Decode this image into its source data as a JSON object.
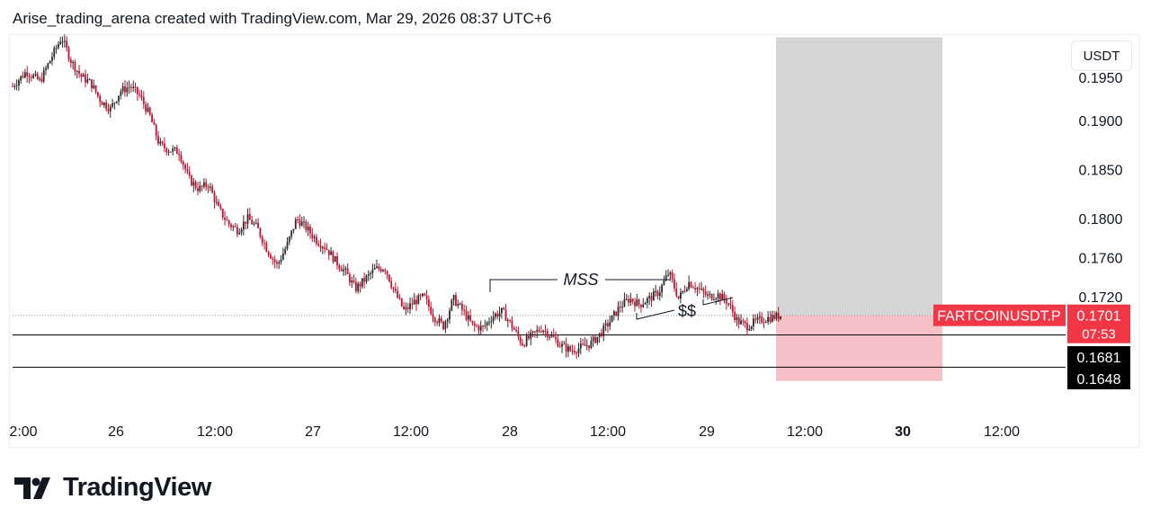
{
  "header": {
    "text": "Arise_trading_arena created with TradingView.com, Mar 29, 2026 08:37 UTC+6"
  },
  "currency_label": "USDT",
  "brand": {
    "name": "TradingView",
    "logo_icon": "tradingview-logo-icon"
  },
  "colors": {
    "up": "#2b2b2b",
    "down": "#c8102e",
    "symbol_badge": "#f23645",
    "stop_zone": "#f7bfc6",
    "target_zone": "#d6d6d6",
    "level_line": "#000000",
    "price_dotted": "#9598a1"
  },
  "chart_data": {
    "type": "candlestick",
    "symbol": "FARTCOINUSDT.P",
    "y_axis": {
      "ticks": [
        "0.1900",
        "0.1850",
        "0.1800",
        "0.1760",
        "0.1720"
      ],
      "partial_top_tick": "0.1950",
      "range": [
        0.1618,
        0.2
      ]
    },
    "x_axis": {
      "ticks": [
        {
          "label": "2:00",
          "bold": false
        },
        {
          "label": "26",
          "bold": false
        },
        {
          "label": "12:00",
          "bold": false
        },
        {
          "label": "27",
          "bold": false
        },
        {
          "label": "12:00",
          "bold": false
        },
        {
          "label": "28",
          "bold": false
        },
        {
          "label": "12:00",
          "bold": false
        },
        {
          "label": "29",
          "bold": false
        },
        {
          "label": "12:00",
          "bold": false
        },
        {
          "label": "30",
          "bold": true
        },
        {
          "label": "12:00",
          "bold": false
        }
      ]
    },
    "last_price": {
      "value": "0.1701",
      "countdown": "07:53"
    },
    "levels": [
      {
        "value": 0.1681,
        "label": "0.1681"
      },
      {
        "value": 0.1648,
        "label": "0.1648"
      }
    ],
    "position": {
      "entry": 0.1701,
      "target": 0.1985,
      "stop": 0.1634
    },
    "annotations": [
      {
        "text": "MSS",
        "italic": true
      },
      {
        "text": "$$",
        "italic": false
      }
    ],
    "price_path": [
      [
        0.0,
        0.1935
      ],
      [
        0.7,
        0.195
      ],
      [
        1.4,
        0.194
      ],
      [
        2.0,
        0.1965
      ],
      [
        2.5,
        0.1985
      ],
      [
        3.0,
        0.196
      ],
      [
        3.5,
        0.1945
      ],
      [
        4.0,
        0.1938
      ],
      [
        4.5,
        0.192
      ],
      [
        5.0,
        0.1912
      ],
      [
        5.5,
        0.193
      ],
      [
        6.0,
        0.1935
      ],
      [
        6.5,
        0.1925
      ],
      [
        7.0,
        0.1905
      ],
      [
        7.5,
        0.1875
      ],
      [
        8.0,
        0.187
      ],
      [
        8.5,
        0.1868
      ],
      [
        9.0,
        0.184
      ],
      [
        9.5,
        0.183
      ],
      [
        10.0,
        0.1835
      ],
      [
        10.5,
        0.181
      ],
      [
        11.0,
        0.1795
      ],
      [
        11.5,
        0.1788
      ],
      [
        12.0,
        0.18
      ],
      [
        12.5,
        0.179
      ],
      [
        13.0,
        0.1768
      ],
      [
        13.5,
        0.1752
      ],
      [
        14.0,
        0.1772
      ],
      [
        14.5,
        0.18
      ],
      [
        15.0,
        0.179
      ],
      [
        15.5,
        0.1778
      ],
      [
        16.0,
        0.177
      ],
      [
        16.5,
        0.1756
      ],
      [
        17.0,
        0.1745
      ],
      [
        17.5,
        0.1728
      ],
      [
        18.0,
        0.1738
      ],
      [
        18.5,
        0.1748
      ],
      [
        19.0,
        0.175
      ],
      [
        19.5,
        0.1725
      ],
      [
        20.0,
        0.1705
      ],
      [
        20.5,
        0.1715
      ],
      [
        21.0,
        0.172
      ],
      [
        21.5,
        0.17
      ],
      [
        22.0,
        0.169
      ],
      [
        22.5,
        0.1718
      ],
      [
        23.0,
        0.1705
      ],
      [
        23.5,
        0.169
      ],
      [
        24.0,
        0.1688
      ],
      [
        24.5,
        0.17
      ],
      [
        25.0,
        0.1705
      ],
      [
        25.5,
        0.169
      ],
      [
        26.0,
        0.1672
      ],
      [
        26.5,
        0.168
      ],
      [
        27.0,
        0.1688
      ],
      [
        27.5,
        0.168
      ],
      [
        28.0,
        0.167
      ],
      [
        28.5,
        0.1665
      ],
      [
        29.0,
        0.1668
      ],
      [
        29.5,
        0.1672
      ],
      [
        30.0,
        0.1682
      ],
      [
        30.5,
        0.1695
      ],
      [
        31.0,
        0.171
      ],
      [
        31.5,
        0.1718
      ],
      [
        32.0,
        0.1712
      ],
      [
        32.5,
        0.1718
      ],
      [
        33.0,
        0.1725
      ],
      [
        33.5,
        0.1745
      ],
      [
        34.0,
        0.1718
      ],
      [
        34.5,
        0.1735
      ],
      [
        35.0,
        0.1728
      ],
      [
        35.5,
        0.172
      ],
      [
        36.0,
        0.1722
      ],
      [
        36.5,
        0.1715
      ],
      [
        37.0,
        0.1695
      ],
      [
        37.5,
        0.169
      ],
      [
        38.0,
        0.1695
      ],
      [
        38.5,
        0.1698
      ],
      [
        39.0,
        0.17
      ],
      [
        39.2,
        0.1701
      ]
    ]
  }
}
